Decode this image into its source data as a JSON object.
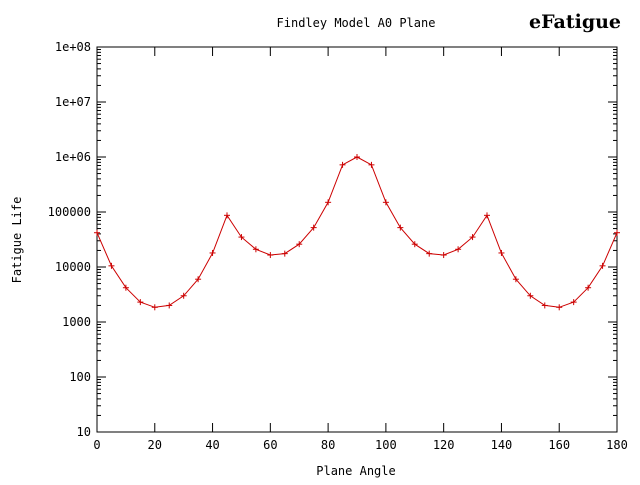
{
  "chart_data": {
    "type": "line",
    "title": "Findley Model A0 Plane",
    "xlabel": "Plane Angle",
    "ylabel": "Fatigue Life",
    "xlim": [
      0,
      180
    ],
    "ylim": [
      10,
      100000000
    ],
    "yscale": "log",
    "grid": false,
    "x_ticks": [
      0,
      20,
      40,
      60,
      80,
      100,
      120,
      140,
      160,
      180
    ],
    "x_tick_labels": [
      "0",
      "20",
      "40",
      "60",
      "80",
      "100",
      "120",
      "140",
      "160",
      "180"
    ],
    "y_ticks": [
      10,
      100,
      1000,
      10000,
      100000,
      1000000,
      10000000,
      100000000
    ],
    "y_tick_labels": [
      "10",
      "100",
      "1000",
      "10000",
      "100000",
      "1e+06",
      "1e+07",
      "1e+08"
    ],
    "series": [
      {
        "color": "#cc0000",
        "marker": "plus",
        "x": [
          0,
          5,
          10,
          15,
          20,
          25,
          30,
          35,
          40,
          45,
          50,
          55,
          60,
          65,
          70,
          75,
          80,
          85,
          90,
          95,
          100,
          105,
          110,
          115,
          120,
          125,
          130,
          135,
          140,
          145,
          150,
          155,
          160,
          165,
          170,
          175,
          180
        ],
        "y": [
          42000,
          10500,
          4200,
          2300,
          1850,
          2000,
          3000,
          6000,
          18000,
          87000,
          35000,
          21000,
          16500,
          17500,
          26000,
          52000,
          150000,
          720000,
          1000000,
          720000,
          150000,
          52000,
          26000,
          17500,
          16500,
          21000,
          35000,
          87000,
          18000,
          6000,
          3000,
          2000,
          1850,
          2300,
          4200,
          10500,
          42000
        ]
      }
    ]
  },
  "logo": {
    "text": "eFatigue",
    "color": "#a31f24"
  }
}
